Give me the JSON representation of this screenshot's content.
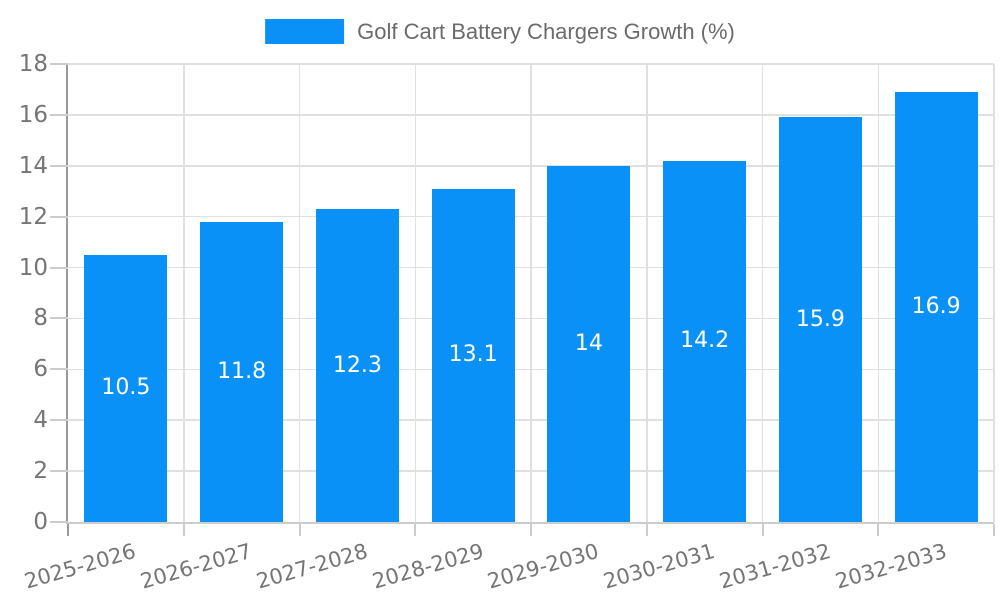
{
  "chart_data": {
    "type": "bar",
    "legend_label": "Golf Cart Battery Chargers Growth (%)",
    "legend_position": "top-center",
    "categories": [
      "2025-2026",
      "2026-2027",
      "2027-2028",
      "2028-2029",
      "2029-2030",
      "2030-2031",
      "2031-2032",
      "2032-2033"
    ],
    "values": [
      10.5,
      11.8,
      12.3,
      13.1,
      14,
      14.2,
      15.9,
      16.9
    ],
    "bar_value_labels": [
      "10.5",
      "11.8",
      "12.3",
      "13.1",
      "14",
      "14.2",
      "15.9",
      "16.9"
    ],
    "xlabel": "",
    "ylabel": "",
    "ylim": [
      0,
      18
    ],
    "yticks": [
      0,
      2,
      4,
      6,
      8,
      10,
      12,
      14,
      16,
      18
    ],
    "ytick_labels": [
      "0",
      "2",
      "4",
      "6",
      "8",
      "10",
      "12",
      "14",
      "16",
      "18"
    ],
    "grid": "on",
    "x_label_rotation_deg": -16,
    "colors": {
      "bar": "#0a91f7",
      "grid": "#e0e0e0",
      "y_axis_line": "#999999",
      "x_axis_line": "#cccccc",
      "tick": "#cccccc",
      "axis_label": "#757575",
      "legend_label": "#6b6b6b",
      "bar_value_label": "#ffffff",
      "background": "#ffffff"
    }
  }
}
